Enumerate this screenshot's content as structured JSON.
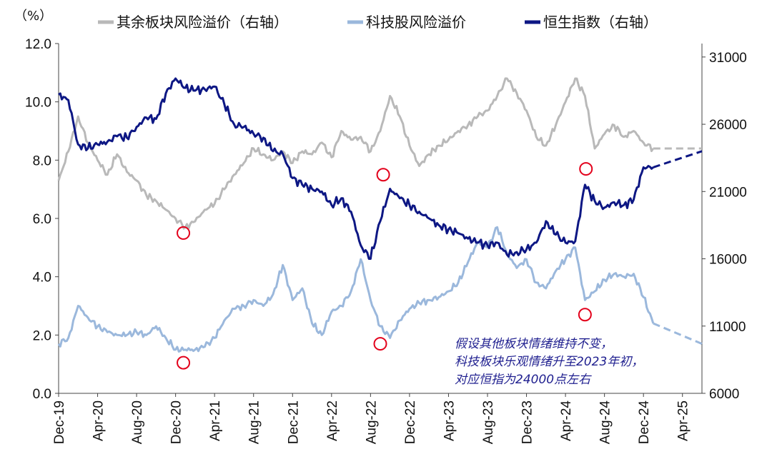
{
  "chart_data": {
    "type": "line",
    "unit_label": "（%）",
    "legend": [
      {
        "name": "其余板块风险溢价（右轴）",
        "color": "#b9b9b9"
      },
      {
        "name": "科技股风险溢价",
        "color": "#9bb8dc"
      },
      {
        "name": "恒生指数（右轴）",
        "color": "#0d1784"
      }
    ],
    "x_labels": [
      "Dec-19",
      "Apr-20",
      "Aug-20",
      "Dec-20",
      "Apr-21",
      "Aug-21",
      "Dec-21",
      "Apr-22",
      "Aug-22",
      "Dec-22",
      "Apr-23",
      "Aug-23",
      "Dec-23",
      "Apr-24",
      "Aug-24",
      "Dec-24",
      "Apr-25"
    ],
    "y_left": {
      "min": 0,
      "max": 12,
      "ticks": [
        "0.0",
        "2.0",
        "4.0",
        "6.0",
        "8.0",
        "10.0",
        "12.0"
      ]
    },
    "y_right": {
      "min": 6000,
      "max": 32000,
      "ticks": [
        "6000",
        "11000",
        "16000",
        "21000",
        "26000",
        "31000"
      ]
    },
    "series": [
      {
        "name": "其余板块风险溢价（右轴）",
        "axis": "left",
        "style": "solid",
        "points": [
          [
            0,
            7.3
          ],
          [
            1,
            8.3
          ],
          [
            2,
            9.5
          ],
          [
            3,
            8.6
          ],
          [
            4,
            8.0
          ],
          [
            5,
            7.5
          ],
          [
            6,
            8.2
          ],
          [
            7,
            7.6
          ],
          [
            8,
            7.3
          ],
          [
            9,
            6.8
          ],
          [
            10,
            6.6
          ],
          [
            11,
            6.3
          ],
          [
            12,
            6.0
          ],
          [
            13,
            5.7
          ],
          [
            14,
            5.9
          ],
          [
            15,
            6.3
          ],
          [
            16,
            6.5
          ],
          [
            17,
            7.0
          ],
          [
            18,
            7.5
          ],
          [
            19,
            7.9
          ],
          [
            20,
            8.4
          ],
          [
            21,
            8.2
          ],
          [
            22,
            8.0
          ],
          [
            23,
            8.3
          ],
          [
            24,
            7.9
          ],
          [
            25,
            8.3
          ],
          [
            26,
            8.2
          ],
          [
            27,
            8.6
          ],
          [
            28,
            8.1
          ],
          [
            29,
            9.0
          ],
          [
            30,
            8.7
          ],
          [
            31,
            8.8
          ],
          [
            32,
            8.3
          ],
          [
            33,
            9.0
          ],
          [
            34,
            10.2
          ],
          [
            35,
            9.5
          ],
          [
            36,
            8.5
          ],
          [
            37,
            7.8
          ],
          [
            38,
            8.2
          ],
          [
            39,
            8.5
          ],
          [
            40,
            8.7
          ],
          [
            41,
            9.0
          ],
          [
            42,
            9.2
          ],
          [
            43,
            9.5
          ],
          [
            44,
            9.7
          ],
          [
            45,
            10.2
          ],
          [
            46,
            10.8
          ],
          [
            47,
            10.3
          ],
          [
            48,
            9.7
          ],
          [
            49,
            8.8
          ],
          [
            50,
            8.5
          ],
          [
            51,
            9.2
          ],
          [
            52,
            10.0
          ],
          [
            53,
            10.8
          ],
          [
            54,
            10.2
          ],
          [
            55,
            8.4
          ],
          [
            56,
            8.9
          ],
          [
            57,
            9.2
          ],
          [
            58,
            8.8
          ],
          [
            59,
            9.0
          ],
          [
            60,
            8.6
          ],
          [
            61,
            8.4
          ]
        ]
      },
      {
        "name": "科技股风险溢价",
        "axis": "left",
        "style": "solid",
        "points": [
          [
            0,
            1.7
          ],
          [
            1,
            1.9
          ],
          [
            2,
            3.0
          ],
          [
            3,
            2.6
          ],
          [
            4,
            2.3
          ],
          [
            5,
            2.1
          ],
          [
            6,
            2.0
          ],
          [
            7,
            2.0
          ],
          [
            8,
            2.1
          ],
          [
            9,
            2.0
          ],
          [
            10,
            2.3
          ],
          [
            11,
            1.9
          ],
          [
            12,
            1.5
          ],
          [
            13,
            1.5
          ],
          [
            14,
            1.5
          ],
          [
            15,
            1.6
          ],
          [
            16,
            1.9
          ],
          [
            17,
            2.5
          ],
          [
            18,
            2.9
          ],
          [
            19,
            3.0
          ],
          [
            20,
            3.2
          ],
          [
            21,
            3.0
          ],
          [
            22,
            3.4
          ],
          [
            23,
            4.4
          ],
          [
            24,
            3.2
          ],
          [
            25,
            3.6
          ],
          [
            26,
            2.4
          ],
          [
            27,
            2.0
          ],
          [
            28,
            2.8
          ],
          [
            29,
            3.0
          ],
          [
            30,
            3.5
          ],
          [
            31,
            4.6
          ],
          [
            32,
            3.2
          ],
          [
            33,
            2.3
          ],
          [
            34,
            1.9
          ],
          [
            35,
            2.5
          ],
          [
            36,
            2.9
          ],
          [
            37,
            3.1
          ],
          [
            38,
            3.2
          ],
          [
            39,
            3.3
          ],
          [
            40,
            3.5
          ],
          [
            41,
            3.8
          ],
          [
            42,
            4.5
          ],
          [
            43,
            5.2
          ],
          [
            44,
            5.0
          ],
          [
            45,
            5.7
          ],
          [
            46,
            4.8
          ],
          [
            47,
            4.3
          ],
          [
            48,
            4.6
          ],
          [
            49,
            3.8
          ],
          [
            50,
            3.6
          ],
          [
            51,
            4.2
          ],
          [
            52,
            4.6
          ],
          [
            53,
            5.0
          ],
          [
            54,
            3.2
          ],
          [
            55,
            3.5
          ],
          [
            56,
            3.9
          ],
          [
            57,
            4.1
          ],
          [
            58,
            4.0
          ],
          [
            59,
            4.1
          ],
          [
            60,
            3.3
          ],
          [
            61,
            2.4
          ]
        ]
      },
      {
        "name": "恒生指数（右轴）",
        "axis": "right",
        "style": "solid",
        "points": [
          [
            0,
            28200
          ],
          [
            1,
            27800
          ],
          [
            2,
            24500
          ],
          [
            3,
            24200
          ],
          [
            4,
            24500
          ],
          [
            5,
            24700
          ],
          [
            6,
            25100
          ],
          [
            7,
            25000
          ],
          [
            8,
            25800
          ],
          [
            9,
            26500
          ],
          [
            10,
            26400
          ],
          [
            11,
            28300
          ],
          [
            12,
            29400
          ],
          [
            13,
            28700
          ],
          [
            14,
            28500
          ],
          [
            15,
            28600
          ],
          [
            16,
            28800
          ],
          [
            17,
            27500
          ],
          [
            18,
            26000
          ],
          [
            19,
            25800
          ],
          [
            20,
            25300
          ],
          [
            21,
            25000
          ],
          [
            22,
            24000
          ],
          [
            23,
            23800
          ],
          [
            24,
            22000
          ],
          [
            25,
            21500
          ],
          [
            26,
            21200
          ],
          [
            27,
            21000
          ],
          [
            28,
            20000
          ],
          [
            29,
            20500
          ],
          [
            30,
            19500
          ],
          [
            31,
            17000
          ],
          [
            32,
            16000
          ],
          [
            33,
            18800
          ],
          [
            34,
            21200
          ],
          [
            35,
            20500
          ],
          [
            36,
            20000
          ],
          [
            37,
            19500
          ],
          [
            38,
            19000
          ],
          [
            39,
            18500
          ],
          [
            40,
            18200
          ],
          [
            41,
            17900
          ],
          [
            42,
            17500
          ],
          [
            43,
            17200
          ],
          [
            44,
            17000
          ],
          [
            45,
            17200
          ],
          [
            46,
            16300
          ],
          [
            47,
            16500
          ],
          [
            48,
            16700
          ],
          [
            49,
            17200
          ],
          [
            50,
            18800
          ],
          [
            51,
            17800
          ],
          [
            52,
            17200
          ],
          [
            53,
            17300
          ],
          [
            54,
            21500
          ],
          [
            55,
            20300
          ],
          [
            56,
            19800
          ],
          [
            57,
            20200
          ],
          [
            58,
            20000
          ],
          [
            59,
            20400
          ],
          [
            60,
            22800
          ],
          [
            61,
            22800
          ]
        ]
      },
      {
        "name": "其余板块风险溢价（右轴）",
        "axis": "left",
        "style": "dashed",
        "points": [
          [
            61,
            8.4
          ],
          [
            66,
            8.4
          ]
        ]
      },
      {
        "name": "科技股风险溢价",
        "axis": "left",
        "style": "dashed",
        "points": [
          [
            61,
            2.4
          ],
          [
            66,
            1.7
          ]
        ]
      },
      {
        "name": "恒生指数（右轴）",
        "axis": "right",
        "style": "dashed",
        "points": [
          [
            61,
            22800
          ],
          [
            66,
            24000
          ]
        ]
      }
    ],
    "highlight_points": [
      {
        "axis": "left",
        "x": 12.8,
        "y": 5.5
      },
      {
        "axis": "left",
        "x": 12.8,
        "y": 1.05
      },
      {
        "axis": "left",
        "x": 33.3,
        "y": 7.5
      },
      {
        "axis": "left",
        "x": 33.0,
        "y": 1.7
      },
      {
        "axis": "left",
        "x": 54.1,
        "y": 7.7
      },
      {
        "axis": "left",
        "x": 54.0,
        "y": 2.7
      }
    ],
    "annotation": [
      "假设其他板块情绪维持不变，",
      "科技板块乐观情绪升至2023年初，",
      "对应恒指为24000点左右"
    ]
  }
}
